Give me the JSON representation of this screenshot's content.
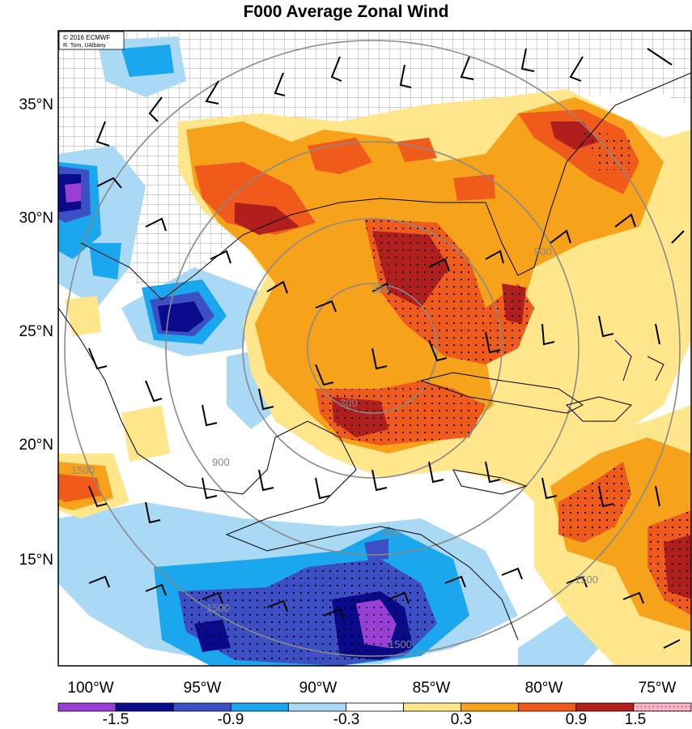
{
  "title": "F000 Average Zonal Wind",
  "credit": {
    "line1": "© 2016 ECMWF",
    "line2": "R. Torn, UAlbany"
  },
  "lat_labels": [
    "35°N",
    "30°N",
    "25°N",
    "20°N",
    "15°N"
  ],
  "lon_labels": [
    "100°W",
    "95°W",
    "90°W",
    "85°W",
    "80°W",
    "75°W"
  ],
  "colorbar": {
    "colors": [
      "#9a3fd6",
      "#0a0a8c",
      "#3d4fc4",
      "#1aa7ee",
      "#a9d9f5",
      "#ffffff",
      "#ffe68a",
      "#f7a21b",
      "#f05a1a",
      "#b01e1e",
      "#f7b6c8"
    ],
    "tick_labels": [
      "-1.5",
      "-0.9",
      "-0.3",
      "0.3",
      "0.9",
      "1.5"
    ]
  },
  "contour_labels": [
    "300",
    "300",
    "900",
    "900",
    "900",
    "1500",
    "1500",
    "1500",
    "1500"
  ]
}
